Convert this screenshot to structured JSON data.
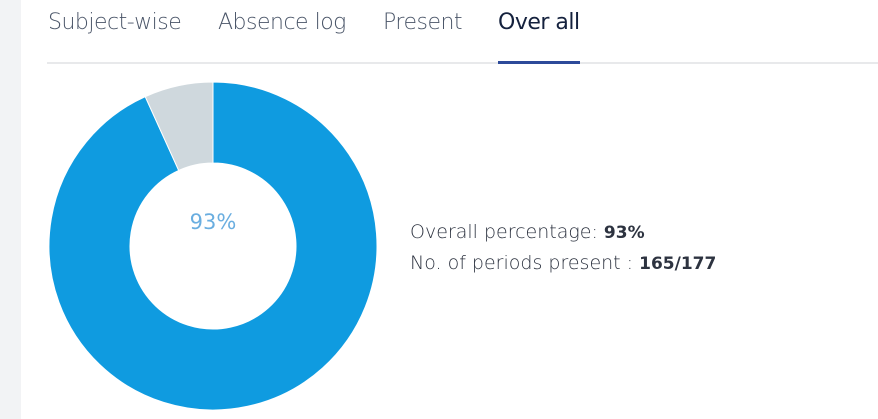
{
  "tabs": [
    {
      "label": "Subject-wise"
    },
    {
      "label": "Absence log"
    },
    {
      "label": "Present"
    },
    {
      "label": "Over all",
      "active": true
    }
  ],
  "chart_data": {
    "type": "pie",
    "variant": "donut",
    "slices": [
      {
        "name": "Present",
        "value": 165,
        "color": "#0f9be0"
      },
      {
        "name": "Absent",
        "value": 12,
        "color": "#cfd8dd"
      }
    ],
    "center_label": "93%"
  },
  "summary": {
    "overall_label": "Overall percentage:",
    "overall_value": "93%",
    "periods_label": "No. of periods present :",
    "periods_value": "165/177"
  }
}
